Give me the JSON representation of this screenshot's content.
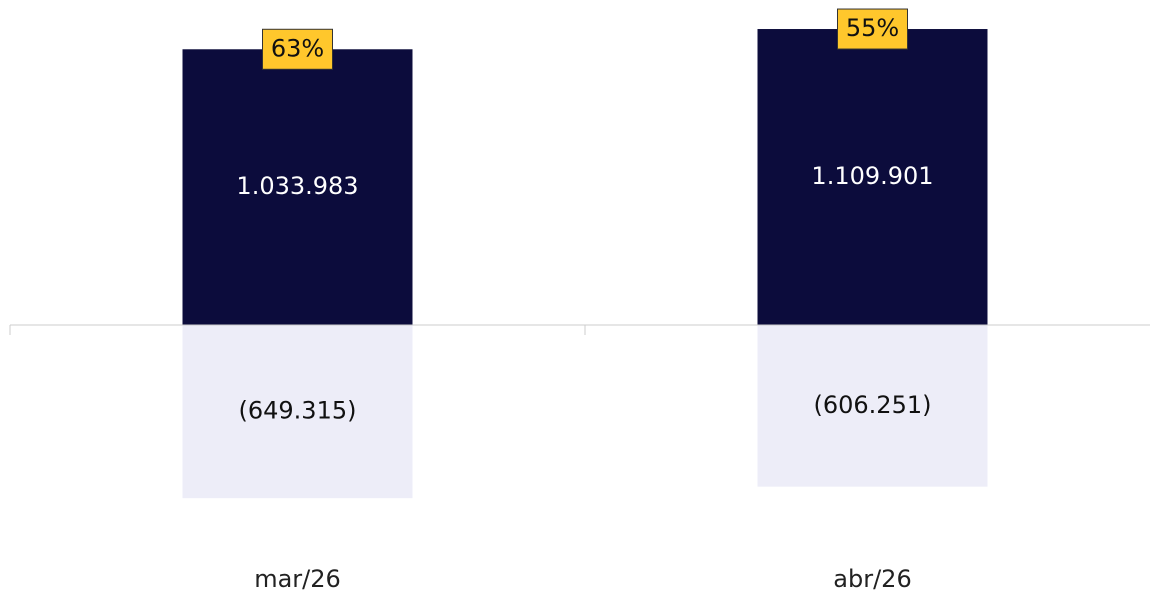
{
  "chart_data": {
    "type": "bar",
    "categories": [
      "mar/26",
      "abr/26"
    ],
    "series": [
      {
        "color": "#0c0c3c",
        "values": [
          1033983,
          1109901
        ],
        "value_labels": [
          "1.033.983",
          "1.109.901"
        ]
      },
      {
        "color": "#ededf8",
        "values": [
          -649315,
          -606251
        ],
        "value_labels": [
          "(649.315)",
          "(606.251)"
        ]
      }
    ],
    "ratio": {
      "color": "#ffc72c",
      "values": [
        63,
        55
      ],
      "value_labels": [
        "63%",
        "55%"
      ]
    },
    "ylim": [
      -900000,
      1200000
    ]
  }
}
